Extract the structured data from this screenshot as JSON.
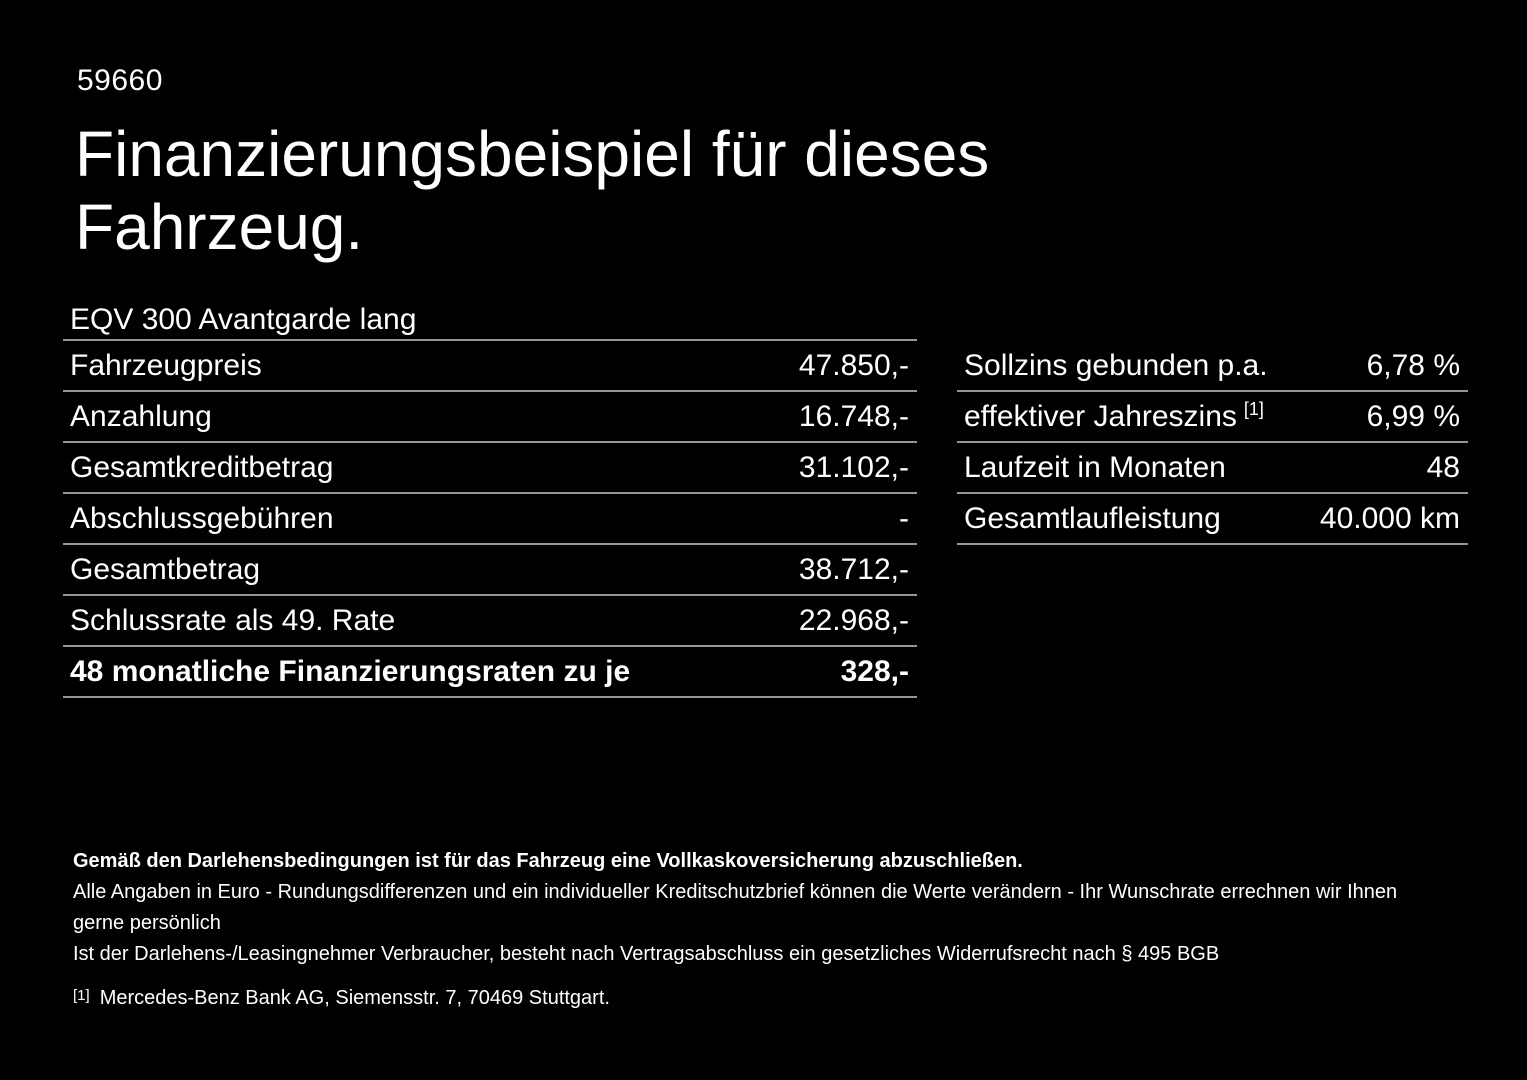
{
  "doc_number": "59660",
  "title": "Finanzierungsbeispiel für dieses Fahrzeug.",
  "vehicle": {
    "model": "EQV 300 Avantgarde lang"
  },
  "finance_table": {
    "rows": [
      {
        "label": "Fahrzeugpreis",
        "value": "47.850,-"
      },
      {
        "label": "Anzahlung",
        "value": "16.748,-"
      },
      {
        "label": "Gesamtkreditbetrag",
        "value": "31.102,-"
      },
      {
        "label": "Abschlussgebühren",
        "value": "-"
      },
      {
        "label": "Gesamtbetrag",
        "value": "38.712,-"
      },
      {
        "label": "Schlussrate als 49. Rate",
        "value": "22.968,-"
      },
      {
        "label": "48 monatliche Finanzierungsraten zu je",
        "value": "328,-"
      }
    ]
  },
  "conditions_table": {
    "rows": [
      {
        "label": "Sollzins gebunden p.a.",
        "sup": "",
        "value": "6,78 %"
      },
      {
        "label": "effektiver Jahreszins",
        "sup": "[1]",
        "value": "6,99 %"
      },
      {
        "label": "Laufzeit in Monaten",
        "sup": "",
        "value": "48"
      },
      {
        "label": "Gesamtlaufleistung",
        "sup": "",
        "value": "40.000 km"
      }
    ]
  },
  "footer": {
    "insurance_note": "Gemäß den Darlehensbedingungen ist für das Fahrzeug eine Vollkaskoversicherung abzuschließen.",
    "disclaimer_line1": "Alle Angaben in Euro - Rundungsdifferenzen und ein individueller Kreditschutzbrief können die Werte verändern - Ihr Wunschrate errechnen wir Ihnen gerne persönlich",
    "disclaimer_line2": "Ist der Darlehens-/Leasingnehmer Verbraucher, besteht nach Vertragsabschluss ein gesetzliches Widerrufsrecht nach § 495 BGB",
    "ref_marker": "[1]",
    "ref_text": "Mercedes-Benz Bank AG, Siemensstr. 7, 70469 Stuttgart."
  },
  "colors": {
    "background": "#000000",
    "text": "#ffffff",
    "divider": "#969696"
  }
}
